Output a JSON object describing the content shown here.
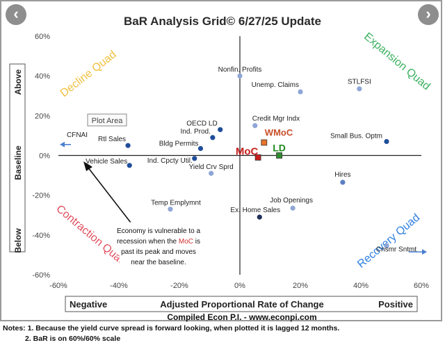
{
  "nav": {
    "prev_icon": "‹",
    "next_icon": "›"
  },
  "chart_data": {
    "type": "scatter",
    "title": "BaR Analysis Grid© 6/27/25 Update",
    "xlabel": "Adjusted Proportional Rate of Change",
    "xlabel_left": "Negative",
    "xlabel_right": "Positive",
    "ylabel_segments": [
      "Above",
      "Baseline",
      "Below"
    ],
    "credit": "Compiled Econ P.I. - www.econpi.com",
    "xlim": [
      -60,
      60
    ],
    "ylim": [
      -60,
      60
    ],
    "xticks": [
      "-60%",
      "-40%",
      "-20%",
      "0%",
      "20%",
      "40%",
      "60%"
    ],
    "yticks": [
      "60%",
      "40%",
      "20%",
      "0%",
      "-20%",
      "-40%",
      "-60%"
    ],
    "grid": false,
    "quadrants": [
      {
        "name": "Decline Quad",
        "color": "#f0c040"
      },
      {
        "name": "Expansion Quad",
        "color": "#3cb060"
      },
      {
        "name": "Contraction Quad",
        "color": "#e05060"
      },
      {
        "name": "Recovery Quad",
        "color": "#3080e0"
      }
    ],
    "plot_area_label": "Plot Area",
    "annotation": {
      "line1": "Economy is vulnerable to a",
      "line2_before": "recession when the ",
      "line2_highlight": "MoC",
      "line2_after": " is",
      "line3": "past its peak and moves",
      "line4": "near the baseline."
    },
    "points": [
      {
        "name": "Nonfin. Profits",
        "x": 0,
        "y": 40,
        "color": "#8fa6d6"
      },
      {
        "name": "Unemp. Claims",
        "x": 20,
        "y": 32,
        "color": "#8fa6d6"
      },
      {
        "name": "STLFSI",
        "x": 39.5,
        "y": 33.5,
        "color": "#8fa6d6"
      },
      {
        "name": "Credit Mgr Indx",
        "x": 5,
        "y": 15,
        "color": "#8fa6d6"
      },
      {
        "name": "OECD LD",
        "x": -6.5,
        "y": 13,
        "color": "#1f4e9a"
      },
      {
        "name": "Ind. Prod.",
        "x": -9,
        "y": 9,
        "color": "#1f4e9a"
      },
      {
        "name": "Bldg Permits",
        "x": -13,
        "y": 3.5,
        "color": "#1f4e9a"
      },
      {
        "name": "Rtl Sales",
        "x": -37,
        "y": 5,
        "color": "#1f4e9a"
      },
      {
        "name": "Vehicle Sales",
        "x": -36.5,
        "y": -5,
        "color": "#1f4e9a"
      },
      {
        "name": "Ind. Cpcty Util.",
        "x": -15,
        "y": -1.5,
        "color": "#1f4e9a"
      },
      {
        "name": "Yield Crv Sprd",
        "x": -9.5,
        "y": -9,
        "color": "#8fa6d6"
      },
      {
        "name": "Small Bus. Optm",
        "x": 48.5,
        "y": 7,
        "color": "#1f4e9a"
      },
      {
        "name": "Hires",
        "x": 34,
        "y": -13.5,
        "color": "#5a7fc4"
      },
      {
        "name": "Job Openings",
        "x": 17.5,
        "y": -26.5,
        "color": "#8fa6d6"
      },
      {
        "name": "Ex. Home Sales",
        "x": 6.5,
        "y": -31,
        "color": "#1f2f5a"
      },
      {
        "name": "Temp Emplymnt",
        "x": -23,
        "y": -27,
        "color": "#8fa6d6"
      },
      {
        "name": "Cnsmr Sntmt",
        "x": 48.5,
        "y": -45.5,
        "color": "#8fa6d6"
      }
    ],
    "markers": [
      {
        "name": "WMoC",
        "x": 8,
        "y": 6.5,
        "color": "#e8732a",
        "label_color": "#c8502a"
      },
      {
        "name": "MoC",
        "x": 6,
        "y": -1,
        "color": "#c81e1e",
        "label_color": "#c81e1e"
      },
      {
        "name": "LD",
        "x": 13,
        "y": 0,
        "color": "#2e8b2e",
        "label_color": "#1e8a1e"
      }
    ],
    "offscale": [
      {
        "name": "CFNAI",
        "direction": "left",
        "y": 5.5
      },
      {
        "name": "Cnsmr Sntmt",
        "direction": "right",
        "y": -48.5
      }
    ]
  },
  "notes": {
    "line1": "Notes: 1. Because the yield curve spread is forward looking, when plotted it is lagged 12 months.",
    "line2": "2. BaR is on 60%/60% scale"
  }
}
